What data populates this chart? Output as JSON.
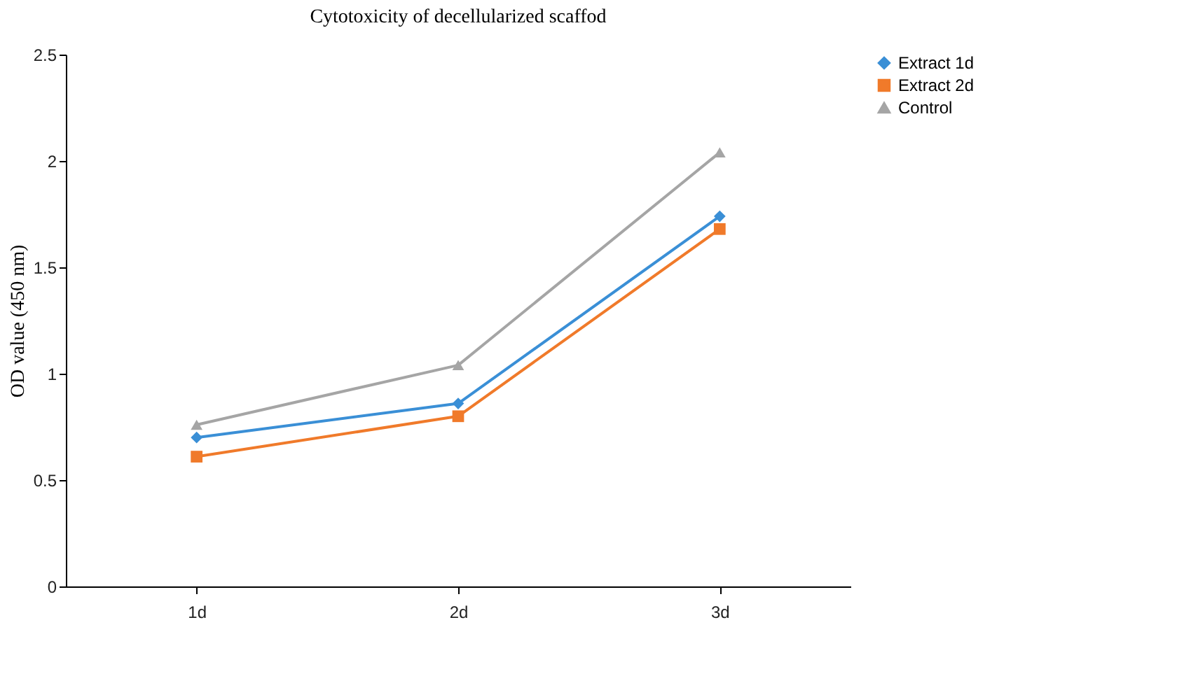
{
  "chart_data": {
    "type": "line",
    "title": "Cytotoxicity of decellularized scaffod",
    "ylabel": "OD value (450 nm)",
    "categories": [
      "1d",
      "2d",
      "3d"
    ],
    "series": [
      {
        "name": "Extract 1d",
        "color": "#3a8fd6",
        "marker": "diamond",
        "values": [
          0.7,
          0.86,
          1.74
        ]
      },
      {
        "name": "Extract 2d",
        "color": "#f07a2a",
        "marker": "square",
        "values": [
          0.61,
          0.8,
          1.68
        ]
      },
      {
        "name": "Control",
        "color": "#a5a5a5",
        "marker": "triangle",
        "values": [
          0.76,
          1.04,
          2.04
        ]
      }
    ],
    "ylim": [
      0,
      2.5
    ],
    "yticks": [
      0,
      0.5,
      1,
      1.5,
      2,
      2.5
    ],
    "grid": false,
    "legend": "right"
  }
}
